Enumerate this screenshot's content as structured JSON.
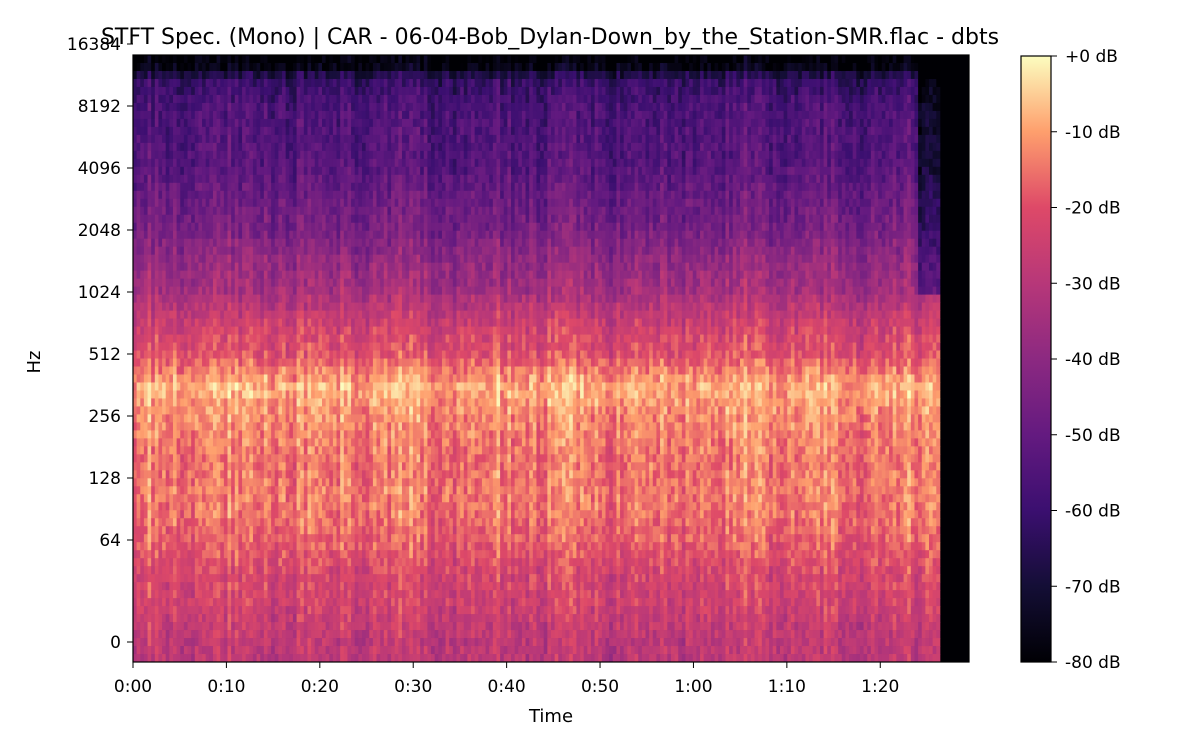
{
  "chart_data": {
    "type": "heatmap",
    "title": "STFT Spec. (Mono) | CAR - 06-04-Bob_Dylan-Down_by_the_Station-SMR.flac - dbts",
    "xlabel": "Time",
    "ylabel": "Hz",
    "x_unit": "seconds",
    "xlim": [
      0,
      89.5
    ],
    "audio_end": 86.5,
    "x_ticks": [
      {
        "value": 0,
        "label": "0:00"
      },
      {
        "value": 10,
        "label": "0:10"
      },
      {
        "value": 20,
        "label": "0:20"
      },
      {
        "value": 30,
        "label": "0:30"
      },
      {
        "value": 40,
        "label": "0:40"
      },
      {
        "value": 50,
        "label": "0:50"
      },
      {
        "value": 60,
        "label": "1:00"
      },
      {
        "value": 70,
        "label": "1:10"
      },
      {
        "value": 80,
        "label": "1:20"
      }
    ],
    "y_scale": "log2",
    "ylim": [
      0,
      22050
    ],
    "y_ticks": [
      {
        "value": 0,
        "label": "0"
      },
      {
        "value": 64,
        "label": "64"
      },
      {
        "value": 128,
        "label": "128"
      },
      {
        "value": 256,
        "label": "256"
      },
      {
        "value": 512,
        "label": "512"
      },
      {
        "value": 1024,
        "label": "1024"
      },
      {
        "value": 2048,
        "label": "2048"
      },
      {
        "value": 4096,
        "label": "4096"
      },
      {
        "value": 8192,
        "label": "8192"
      },
      {
        "value": 16384,
        "label": "16384"
      }
    ],
    "colormap": "magma",
    "colorbar": {
      "range": [
        -80,
        0
      ],
      "unit": "dB",
      "ticks": [
        {
          "value": 0,
          "label": "+0 dB"
        },
        {
          "value": -10,
          "label": "-10 dB"
        },
        {
          "value": -20,
          "label": "-20 dB"
        },
        {
          "value": -30,
          "label": "-30 dB"
        },
        {
          "value": -40,
          "label": "-40 dB"
        },
        {
          "value": -50,
          "label": "-50 dB"
        },
        {
          "value": -60,
          "label": "-60 dB"
        },
        {
          "value": -70,
          "label": "-70 dB"
        },
        {
          "value": -80,
          "label": "-80 dB"
        }
      ]
    },
    "frequency_profile": [
      {
        "hz": 0,
        "db": -28
      },
      {
        "hz": 43,
        "db": -22
      },
      {
        "hz": 64,
        "db": -17
      },
      {
        "hz": 100,
        "db": -14
      },
      {
        "hz": 150,
        "db": -15
      },
      {
        "hz": 256,
        "db": -12
      },
      {
        "hz": 350,
        "db": -8
      },
      {
        "hz": 512,
        "db": -20
      },
      {
        "hz": 700,
        "db": -24
      },
      {
        "hz": 1024,
        "db": -34
      },
      {
        "hz": 2048,
        "db": -45
      },
      {
        "hz": 4096,
        "db": -53
      },
      {
        "hz": 8192,
        "db": -56
      },
      {
        "hz": 11025,
        "db": -62
      },
      {
        "hz": 13000,
        "db": -80
      },
      {
        "hz": 22050,
        "db": -80
      }
    ],
    "grid": false,
    "legend": "colorbar-right"
  }
}
